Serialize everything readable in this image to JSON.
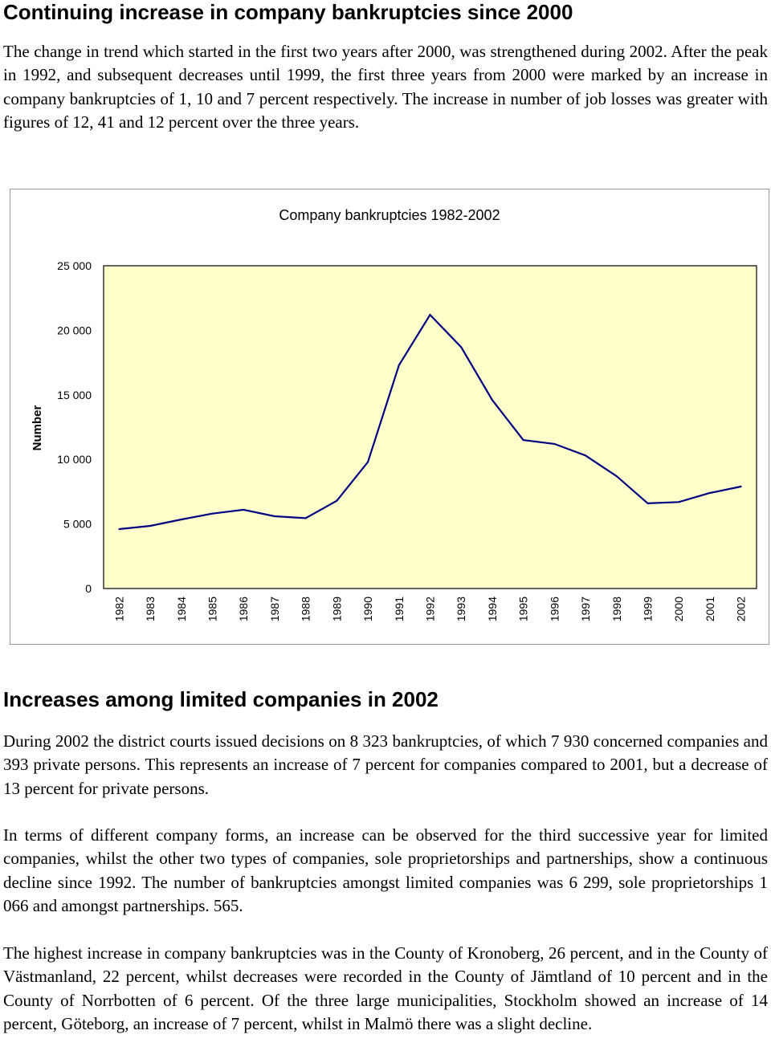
{
  "heading1": "Continuing increase in company bankruptcies since 2000",
  "paragraph1": "The change in trend which started in the first two years after 2000, was strengthened during 2002. After the peak in 1992, and subsequent decreases until 1999, the first three years from 2000 were marked by an increase in company bankruptcies of 1, 10 and 7 percent respectively. The increase in number of job losses was greater with figures of 12, 41 and 12 percent over the three years.",
  "heading2": "Increases among limited companies in 2002",
  "paragraph2": "During 2002 the district courts issued decisions on 8 323 bankruptcies, of which 7 930 concerned companies and 393 private persons. This represents an increase of 7 percent for companies compared to 2001, but a decrease of 13 percent for private persons.",
  "paragraph3": "In terms of different company forms, an increase can be observed for the third successive year for limited companies, whilst the other two types of companies, sole proprietorships and partnerships, show a continuous decline since 1992. The number of bankruptcies amongst limited companies was 6 299, sole proprietorships 1 066 and amongst partnerships. 565.",
  "paragraph4": "The highest increase in company bankruptcies was in the County of Kronoberg, 26 percent, and in the County of Västmanland, 22 percent, whilst decreases were recorded in the County of Jämtland of 10 percent and in the County of Norrbotten of 6 percent. Of the three large municipalities, Stockholm showed an increase of 14 percent, Göteborg, an increase of 7 percent, whilst in Malmö there was a slight decline.",
  "chart_data": {
    "type": "line",
    "title": "Company bankruptcies 1982-2002",
    "xlabel": "",
    "ylabel": "Number",
    "categories": [
      "1982",
      "1983",
      "1984",
      "1985",
      "1986",
      "1987",
      "1988",
      "1989",
      "1990",
      "1991",
      "1992",
      "1993",
      "1994",
      "1995",
      "1996",
      "1997",
      "1998",
      "1999",
      "2000",
      "2001",
      "2002"
    ],
    "values": [
      4600,
      4850,
      5350,
      5800,
      6100,
      5600,
      5450,
      6800,
      9800,
      17300,
      21200,
      18700,
      14600,
      11500,
      11200,
      10300,
      8700,
      6600,
      6700,
      7400,
      7900
    ],
    "yticks": [
      "0",
      "5 000",
      "10 000",
      "15 000",
      "20 000",
      "25 000"
    ],
    "ylim": [
      0,
      25000
    ],
    "grid": false,
    "legend": "none",
    "colors": {
      "plot_background": "#ffffcc",
      "line": "#000080"
    }
  }
}
